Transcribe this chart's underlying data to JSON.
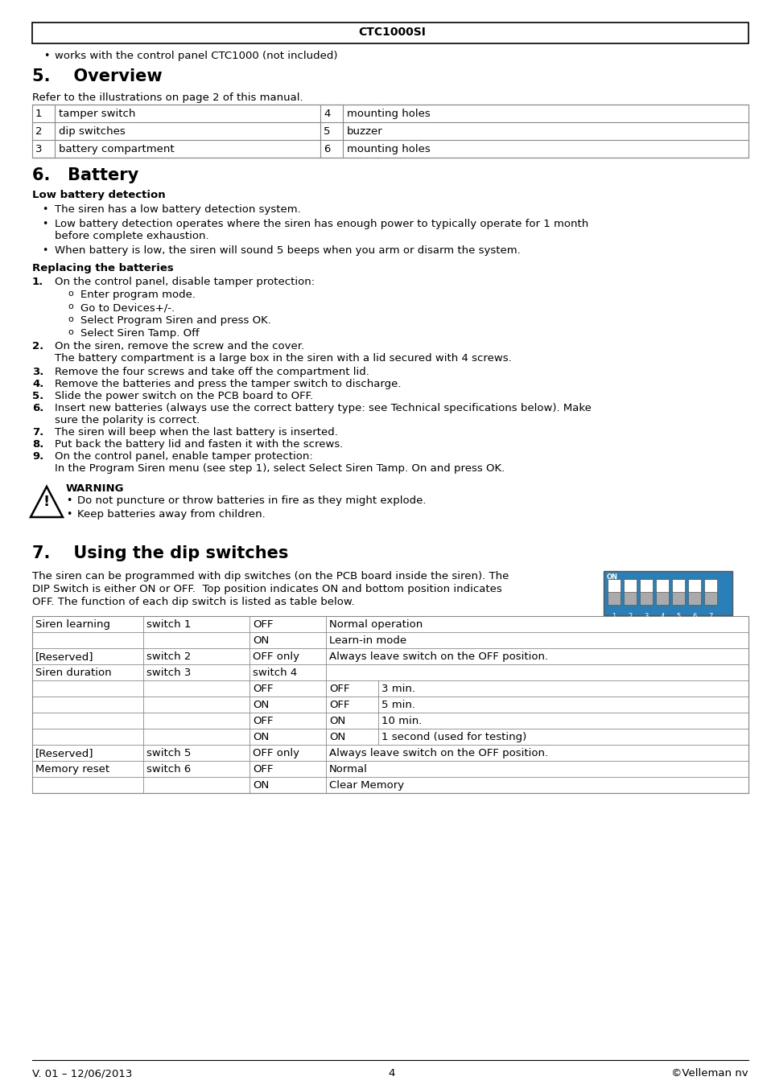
{
  "header_title": "CTC1000SI",
  "bullet_intro": "works with the control panel CTC1000 (not included)",
  "section5_title": "5.    Overview",
  "section5_subtitle": "Refer to the illustrations on page 2 of this manual.",
  "overview_table": [
    [
      "1",
      "tamper switch",
      "4",
      "mounting holes"
    ],
    [
      "2",
      "dip switches",
      "5",
      "buzzer"
    ],
    [
      "3",
      "battery compartment",
      "6",
      "mounting holes"
    ]
  ],
  "section6_title": "6.   Battery",
  "low_battery_title": "Low battery detection",
  "low_battery_bullets": [
    "The siren has a low battery detection system.",
    "Low battery detection operates where the siren has enough power to typically operate for 1 month",
    "before complete exhaustion.",
    "When battery is low, the siren will sound 5 beeps when you arm or disarm the system."
  ],
  "replacing_title": "Replacing the batteries",
  "warning_title": "WARNING",
  "warning_bullets": [
    "Do not puncture or throw batteries in fire as they might explode.",
    "Keep batteries away from children."
  ],
  "section7_title": "7.    Using the dip switches",
  "section7_intro_lines": [
    "The siren can be programmed with dip switches (on the PCB board inside the siren). The",
    "DIP Switch is either ON or OFF.  Top position indicates ON and bottom position indicates",
    "OFF. The function of each dip switch is listed as table below."
  ],
  "footer_left": "V. 01 – 12/06/2013",
  "footer_center": "4",
  "footer_right": "©Velleman nv"
}
